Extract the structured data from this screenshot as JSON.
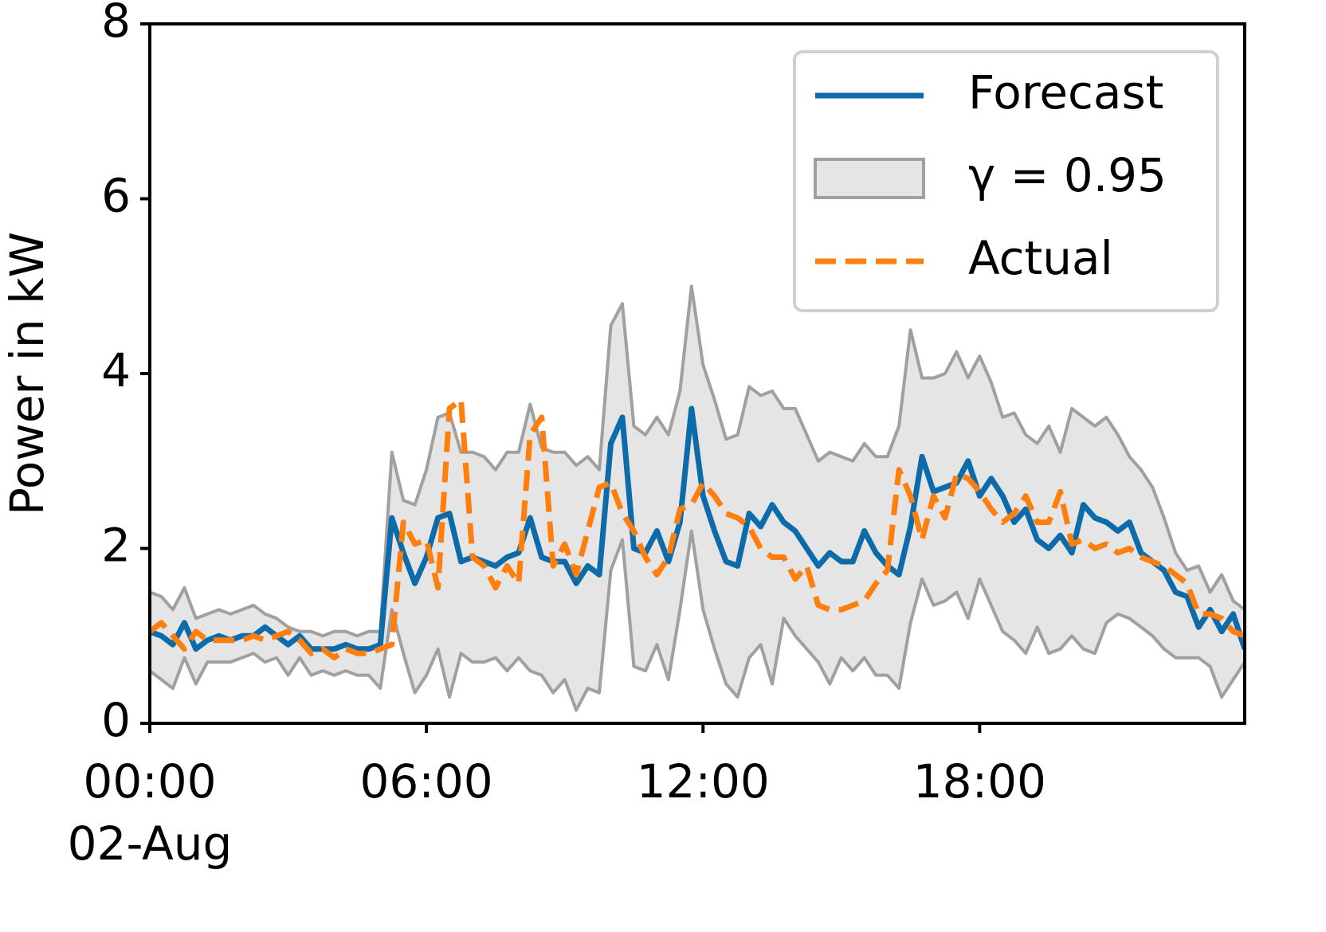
{
  "chart_data": {
    "type": "line",
    "ylabel": "Power in kW",
    "x": [
      0,
      0.25,
      0.5,
      0.75,
      1,
      1.25,
      1.5,
      1.75,
      2,
      2.25,
      2.5,
      2.75,
      3,
      3.25,
      3.5,
      3.75,
      4,
      4.25,
      4.5,
      4.75,
      5,
      5.25,
      5.5,
      5.75,
      6,
      6.25,
      6.5,
      6.75,
      7,
      7.25,
      7.5,
      7.75,
      8,
      8.25,
      8.5,
      8.75,
      9,
      9.25,
      9.5,
      9.75,
      10,
      10.25,
      10.5,
      10.75,
      11,
      11.25,
      11.5,
      11.75,
      12,
      12.25,
      12.5,
      12.75,
      13,
      13.25,
      13.5,
      13.75,
      14,
      14.25,
      14.5,
      14.75,
      15,
      15.25,
      15.5,
      15.75,
      16,
      16.25,
      16.5,
      16.75,
      17,
      17.25,
      17.5,
      17.75,
      18,
      18.25,
      18.5,
      18.75,
      19,
      19.25,
      19.5,
      19.75,
      20,
      20.25,
      20.5,
      20.75,
      21,
      21.25,
      21.5,
      21.75,
      22,
      22.25,
      22.5,
      22.75,
      23,
      23.25,
      23.5,
      23.75
    ],
    "xlim": [
      0,
      23.75
    ],
    "xticks": [
      {
        "value": 0,
        "label": "00:00"
      },
      {
        "value": 6,
        "label": "06:00"
      },
      {
        "value": 12,
        "label": "12:00"
      },
      {
        "value": 18,
        "label": "18:00"
      }
    ],
    "x_date_label": "02-Aug",
    "ylim": [
      0,
      8
    ],
    "yticks": [
      0,
      2,
      4,
      6,
      8
    ],
    "legend": "upper right",
    "band": {
      "name": "γ = 0.95",
      "color": "#e5e5e5",
      "edge_color": "#a0a0a0",
      "upper": [
        1.5,
        1.45,
        1.3,
        1.55,
        1.2,
        1.25,
        1.3,
        1.25,
        1.3,
        1.35,
        1.25,
        1.2,
        1.1,
        1.05,
        1.05,
        1.0,
        1.05,
        1.05,
        1.0,
        1.05,
        1.05,
        3.1,
        2.55,
        2.5,
        2.9,
        3.5,
        3.55,
        3.1,
        3.1,
        3.05,
        2.9,
        3.1,
        3.1,
        3.65,
        3.15,
        3.1,
        3.1,
        2.95,
        3.05,
        2.9,
        4.55,
        4.8,
        3.4,
        3.3,
        3.5,
        3.3,
        3.8,
        5.0,
        4.1,
        3.7,
        3.25,
        3.3,
        3.85,
        3.75,
        3.8,
        3.6,
        3.6,
        3.3,
        3.0,
        3.1,
        3.05,
        3.0,
        3.2,
        3.05,
        3.05,
        3.4,
        4.5,
        3.95,
        3.95,
        4.0,
        4.25,
        3.95,
        4.2,
        3.9,
        3.5,
        3.55,
        3.3,
        3.2,
        3.4,
        3.1,
        3.6,
        3.5,
        3.4,
        3.5,
        3.3,
        3.05,
        2.9,
        2.7,
        2.35,
        1.95,
        1.75,
        1.8,
        1.5,
        1.7,
        1.4,
        1.3
      ],
      "lower": [
        0.6,
        0.5,
        0.4,
        0.75,
        0.45,
        0.7,
        0.7,
        0.7,
        0.75,
        0.8,
        0.7,
        0.75,
        0.55,
        0.75,
        0.55,
        0.6,
        0.55,
        0.6,
        0.55,
        0.55,
        0.4,
        1.3,
        0.8,
        0.35,
        0.55,
        0.85,
        0.3,
        0.8,
        0.7,
        0.7,
        0.75,
        0.6,
        0.75,
        0.6,
        0.55,
        0.35,
        0.5,
        0.15,
        0.4,
        0.35,
        1.75,
        2.1,
        0.65,
        0.6,
        0.9,
        0.5,
        1.3,
        2.2,
        1.3,
        0.85,
        0.45,
        0.3,
        0.75,
        0.9,
        0.45,
        1.2,
        1.0,
        0.85,
        0.7,
        0.45,
        0.75,
        0.6,
        0.75,
        0.55,
        0.55,
        0.4,
        1.15,
        1.65,
        1.35,
        1.4,
        1.5,
        1.2,
        1.65,
        1.35,
        1.05,
        0.95,
        0.8,
        1.1,
        0.8,
        0.85,
        1.0,
        0.85,
        0.8,
        1.15,
        1.25,
        1.2,
        1.1,
        1.0,
        0.85,
        0.75,
        0.75,
        0.75,
        0.65,
        0.3,
        0.5,
        0.7
      ]
    },
    "series": [
      {
        "name": "Forecast",
        "color": "#0c6ba8",
        "dashed": false,
        "values": [
          1.05,
          1.0,
          0.9,
          1.15,
          0.85,
          0.95,
          1.0,
          0.95,
          1.0,
          1.0,
          1.1,
          1.0,
          0.9,
          1.0,
          0.85,
          0.85,
          0.85,
          0.9,
          0.85,
          0.85,
          0.9,
          2.35,
          1.95,
          1.6,
          1.9,
          2.35,
          2.4,
          1.85,
          1.9,
          1.85,
          1.8,
          1.9,
          1.95,
          2.35,
          1.9,
          1.85,
          1.85,
          1.6,
          1.8,
          1.7,
          3.2,
          3.5,
          2.0,
          1.95,
          2.2,
          1.85,
          2.3,
          3.6,
          2.6,
          2.2,
          1.85,
          1.8,
          2.4,
          2.25,
          2.5,
          2.3,
          2.2,
          2.0,
          1.8,
          1.95,
          1.85,
          1.85,
          2.2,
          1.95,
          1.8,
          1.7,
          2.25,
          3.05,
          2.65,
          2.7,
          2.75,
          3.0,
          2.6,
          2.8,
          2.6,
          2.3,
          2.45,
          2.1,
          2.0,
          2.15,
          1.95,
          2.5,
          2.35,
          2.3,
          2.2,
          2.3,
          1.95,
          1.85,
          1.75,
          1.5,
          1.45,
          1.1,
          1.3,
          1.05,
          1.25,
          0.85
        ]
      },
      {
        "name": "Actual",
        "color": "#ff7f0e",
        "dashed": true,
        "values": [
          1.05,
          1.15,
          1.0,
          0.85,
          1.05,
          0.95,
          0.95,
          0.95,
          0.95,
          1.0,
          0.95,
          1.0,
          1.05,
          0.95,
          0.8,
          0.85,
          0.75,
          0.85,
          0.8,
          0.8,
          0.85,
          0.9,
          2.3,
          2.05,
          2.1,
          1.55,
          3.6,
          3.7,
          1.9,
          1.8,
          1.55,
          1.8,
          1.6,
          3.3,
          3.5,
          1.8,
          2.05,
          1.7,
          2.2,
          2.7,
          2.75,
          2.4,
          2.2,
          1.9,
          1.7,
          1.9,
          2.45,
          2.5,
          2.75,
          2.6,
          2.4,
          2.35,
          2.25,
          2.0,
          1.9,
          1.9,
          1.65,
          1.8,
          1.35,
          1.3,
          1.3,
          1.35,
          1.4,
          1.6,
          1.75,
          2.9,
          2.6,
          2.1,
          2.6,
          2.35,
          2.85,
          2.8,
          2.65,
          2.45,
          2.3,
          2.4,
          2.6,
          2.3,
          2.3,
          2.65,
          2.05,
          2.1,
          2.0,
          2.05,
          1.95,
          2.0,
          1.9,
          1.85,
          1.8,
          1.7,
          1.6,
          1.25,
          1.25,
          1.2,
          1.05,
          1.0
        ]
      }
    ]
  }
}
